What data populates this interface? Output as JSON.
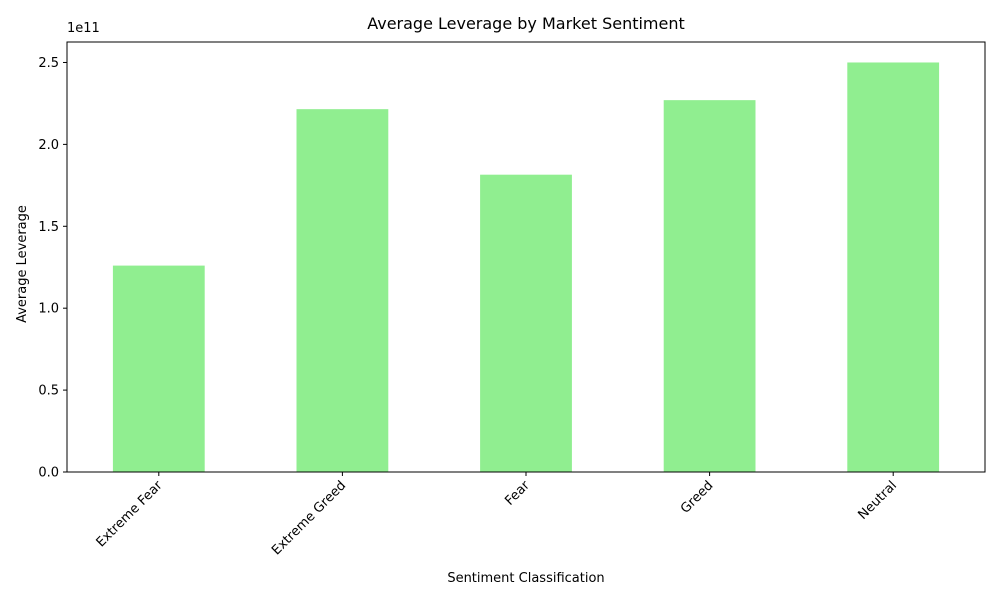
{
  "chart_data": {
    "type": "bar",
    "title": "Average Leverage by Market Sentiment",
    "xlabel": "Sentiment Classification",
    "ylabel": "Average Leverage",
    "y_offset_label": "1e11",
    "categories": [
      "Extreme Fear",
      "Extreme Greed",
      "Fear",
      "Greed",
      "Neutral"
    ],
    "values": [
      126000000000,
      221500000000,
      181500000000,
      227000000000,
      250000000000
    ],
    "ylim": [
      0,
      262500000000
    ],
    "yticks": [
      0,
      50000000000,
      100000000000,
      150000000000,
      200000000000,
      250000000000
    ],
    "ytick_labels": [
      "0.0",
      "0.5",
      "1.0",
      "1.5",
      "2.0",
      "2.5"
    ],
    "bar_color": "#90ee90",
    "grid": false,
    "legend": "none"
  }
}
